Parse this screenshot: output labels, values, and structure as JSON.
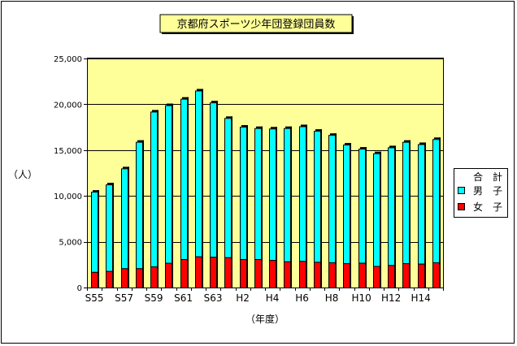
{
  "chart_data": {
    "type": "bar",
    "stacked": true,
    "title": "京都府スポーツ少年団登録団員数",
    "xlabel": "（年度）",
    "ylabel": "（人）",
    "ylim": [
      0,
      25000
    ],
    "yticks": [
      "0",
      "5,000",
      "10,000",
      "15,000",
      "20,000",
      "25,000"
    ],
    "ytick_values": [
      0,
      5000,
      10000,
      15000,
      20000,
      25000
    ],
    "xtick_labels": [
      "S55",
      "S57",
      "S59",
      "S61",
      "S63",
      "H2",
      "H4",
      "H6",
      "H8",
      "H10",
      "H12",
      "H14"
    ],
    "xtick_positions": [
      0,
      2,
      4,
      6,
      8,
      10,
      12,
      14,
      16,
      18,
      20,
      22
    ],
    "grid": true,
    "legend_position": "right",
    "legend_title": "合　計",
    "categories": [
      "S55",
      "S56",
      "S57",
      "S58",
      "S59",
      "S60",
      "S61",
      "S62",
      "S63",
      "H1",
      "H2",
      "H3",
      "H4",
      "H5",
      "H6",
      "H7",
      "H8",
      "H9",
      "H10",
      "H11",
      "H12",
      "H13",
      "H14",
      "H15"
    ],
    "series": [
      {
        "name": "女　子",
        "color": "#ff0000",
        "values": [
          1700,
          1800,
          2100,
          2100,
          2300,
          2700,
          3100,
          3400,
          3350,
          3300,
          3100,
          3100,
          3000,
          2850,
          2900,
          2800,
          2750,
          2650,
          2700,
          2350,
          2450,
          2650,
          2600,
          2750
        ]
      },
      {
        "name": "男　子",
        "color": "#00ffff",
        "values": [
          8750,
          9450,
          10900,
          13800,
          16900,
          17200,
          17500,
          18100,
          16850,
          15200,
          14450,
          14300,
          14350,
          14550,
          14700,
          14300,
          13900,
          12950,
          12450,
          12300,
          12850,
          13250,
          13050,
          13450
        ]
      }
    ],
    "colors": {
      "plot_bg": "#ffff99",
      "frame_border": "#000000",
      "gridline": "#000000",
      "axis": "#000000"
    }
  }
}
